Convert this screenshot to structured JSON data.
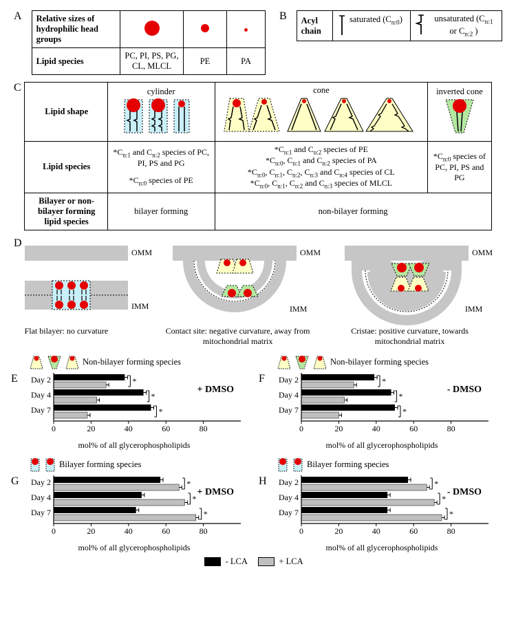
{
  "colors": {
    "red": "#e40000",
    "cyan_fill": "#c9f0f8",
    "yellow_fill": "#ffffc5",
    "green_fill": "#b4e8a0",
    "gray_mem": "#c6c6c6",
    "gray_dark": "#b0b0b0",
    "bar_black": "#000000",
    "bar_gray": "#bfbfbf"
  },
  "panelA": {
    "row1_label": "Relative sizes of hydrophilic head groups",
    "row2_label": "Lipid species",
    "columns": [
      {
        "size": "lg",
        "species": "PC, PI, PS, PG, CL, MLCL"
      },
      {
        "size": "md",
        "species": "PE"
      },
      {
        "size": "sm",
        "species": "PA"
      }
    ]
  },
  "panelB": {
    "row_label": "Acyl chain",
    "sat_label": "saturated (C",
    "sat_sub": "n:0",
    "sat_end": ")",
    "unsat_label": "unsaturated (C",
    "unsat_sub1": "n:1",
    "unsat_mid": " or C",
    "unsat_sub2": "n:2",
    "unsat_end": " )"
  },
  "panelC": {
    "row_shape": "Lipid shape",
    "shape_names": [
      "cylinder",
      "cone",
      "inverted cone"
    ],
    "row_species": "Lipid species",
    "species_cyl": [
      "*Cn:1 and Cn:2 species of PC, PI, PS and PG",
      "*Cn:0 species of PE"
    ],
    "species_cone": [
      "*Cn:1 and Cn:2 species of PE",
      "*Cn:0, Cn:1 and Cn:2 species of PA",
      "*Cn:0, Cn:1, Cn:2, Cn:3 and Cn:4 species of CL",
      "*Cn:0, Cn:1, Cn:2 and Cn:3 species of  MLCL"
    ],
    "species_inv": [
      "*Cn:0 species of PC, PI, PS and PG"
    ],
    "row_bilayer": "Bilayer or non-bilayer forming lipid species",
    "bilayer_cyl": "bilayer forming",
    "bilayer_other": "non-bilayer forming"
  },
  "panelD": {
    "omm": "OMM",
    "imm": "IMM",
    "cap1": "Flat bilayer: no curvature",
    "cap2": "Contact site: negative curvature, away from mitochondrial matrix",
    "cap3": "Cristae: positive curvature, towards mitochondrial matrix"
  },
  "charts": {
    "xmax": 100,
    "xticks": [
      0,
      20,
      40,
      60,
      80
    ],
    "days": [
      "Day 2",
      "Day 4",
      "Day 7"
    ],
    "xlabel": "mol% of all glycerophospholipids",
    "nonbilayer_title": "Non-bilayer forming species",
    "bilayer_title": "Bilayer forming species",
    "sig": "*",
    "E": {
      "cond": "+ DMSO",
      "pairs": [
        {
          "b": 38,
          "g": 28
        },
        {
          "b": 48,
          "g": 23
        },
        {
          "b": 52,
          "g": 18
        }
      ],
      "sig_on": "g"
    },
    "F": {
      "cond": "- DMSO",
      "pairs": [
        {
          "b": 39,
          "g": 28
        },
        {
          "b": 48,
          "g": 23
        },
        {
          "b": 50,
          "g": 20
        }
      ],
      "sig_on": "g"
    },
    "G": {
      "cond": "+ DMSO",
      "pairs": [
        {
          "b": 57,
          "g": 67
        },
        {
          "b": 47,
          "g": 70
        },
        {
          "b": 44,
          "g": 76
        }
      ],
      "sig_on": "g"
    },
    "H": {
      "cond": "- DMSO",
      "pairs": [
        {
          "b": 57,
          "g": 67
        },
        {
          "b": 46,
          "g": 71
        },
        {
          "b": 46,
          "g": 75
        }
      ],
      "sig_on": "g"
    }
  },
  "legend": {
    "minus": "- LCA",
    "plus": "+ LCA"
  }
}
